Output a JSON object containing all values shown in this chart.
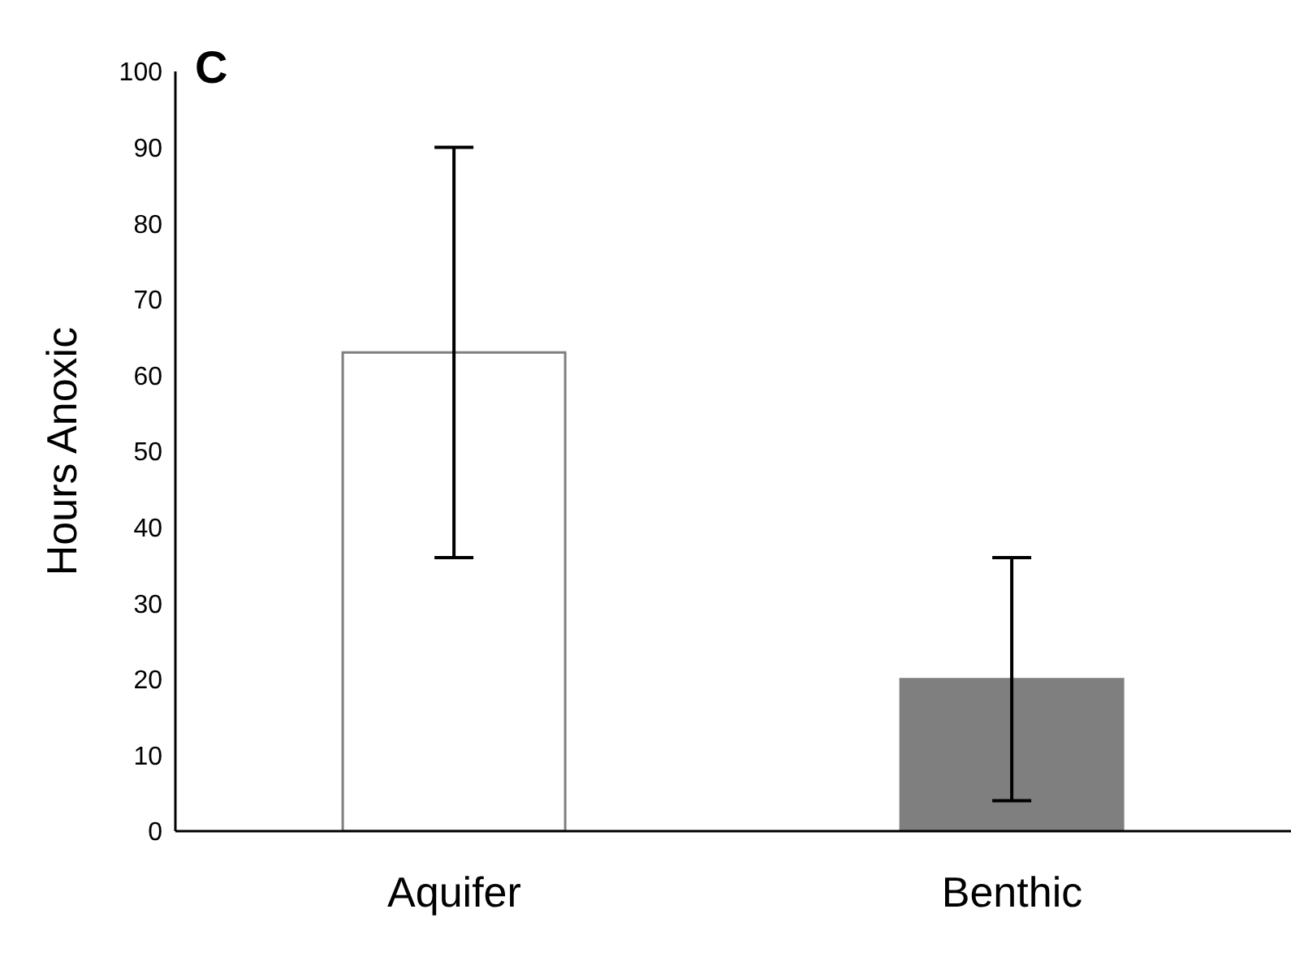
{
  "chart_data": {
    "type": "bar",
    "ylabel": "Hours Anoxic",
    "annotations": [
      "C"
    ],
    "categories": [
      "Aquifer",
      "Benthic"
    ],
    "values": [
      63,
      20
    ],
    "colors": [
      "#ffffff",
      "#7f7f7f"
    ],
    "errors": [
      [
        36,
        90
      ],
      [
        4,
        36
      ]
    ],
    "ylim": [
      0,
      100
    ],
    "yticks": [
      0,
      10,
      20,
      30,
      40,
      50,
      60,
      70,
      80,
      90,
      100
    ],
    "grid": false
  }
}
